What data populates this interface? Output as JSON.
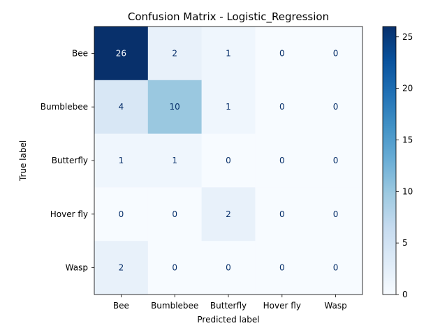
{
  "chart_data": {
    "type": "heatmap",
    "title": "Confusion Matrix - Logistic_Regression",
    "xlabel": "Predicted label",
    "ylabel": "True label",
    "x_categories": [
      "Bee",
      "Bumblebee",
      "Butterfly",
      "Hover fly",
      "Wasp"
    ],
    "y_categories": [
      "Bee",
      "Bumblebee",
      "Butterfly",
      "Hover fly",
      "Wasp"
    ],
    "matrix": [
      [
        26,
        2,
        1,
        0,
        0
      ],
      [
        4,
        10,
        1,
        0,
        0
      ],
      [
        1,
        1,
        0,
        0,
        0
      ],
      [
        0,
        0,
        2,
        0,
        0
      ],
      [
        2,
        0,
        0,
        0,
        0
      ]
    ],
    "colormap": "Blues",
    "value_range": [
      0,
      26
    ],
    "colorbar_ticks": [
      0,
      5,
      10,
      15,
      20,
      25
    ],
    "colors": {
      "low": "#f7fbff",
      "high": "#08306b",
      "text_on_light": "#08306b",
      "text_on_dark": "#f7fbff"
    }
  }
}
